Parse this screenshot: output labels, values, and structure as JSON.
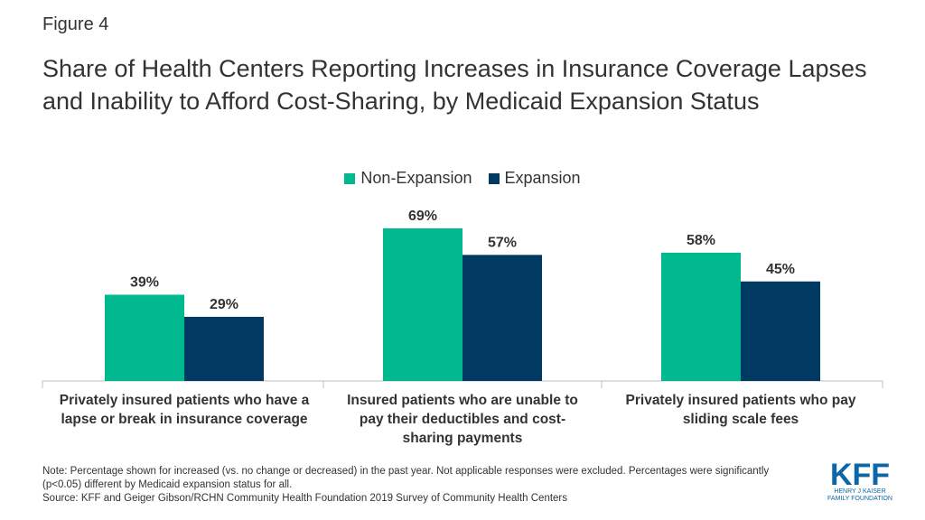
{
  "figure_label": "Figure 4",
  "colors": {
    "non_expansion": "#00B98E",
    "expansion": "#003A63",
    "logo": "#0B67A8"
  },
  "chart_data": {
    "type": "bar",
    "title": "Share of Health Centers Reporting Increases in Insurance Coverage Lapses and Inability to Afford Cost-Sharing, by Medicaid Expansion Status",
    "categories": [
      "Privately insured patients who have a lapse or break in insurance coverage",
      "Insured patients who are unable to pay their deductibles and cost-sharing payments",
      "Privately insured patients who pay sliding scale fees"
    ],
    "series": [
      {
        "name": "Non-Expansion",
        "values": [
          39,
          69,
          58
        ],
        "labels": [
          "39%",
          "69%",
          "58%"
        ]
      },
      {
        "name": "Expansion",
        "values": [
          29,
          57,
          45
        ],
        "labels": [
          "29%",
          "57%",
          "45%"
        ]
      }
    ],
    "ylim": [
      0,
      100
    ],
    "legend": "top-center",
    "grid": false
  },
  "category_label_lines": [
    [
      "Privately insured patients who have a",
      "lapse or break in insurance coverage"
    ],
    [
      "Insured patients who are unable to",
      "pay their deductibles and cost-",
      "sharing payments"
    ],
    [
      "Privately insured patients who pay",
      "sliding scale fees"
    ]
  ],
  "notes": {
    "note": "Note: Percentage shown for increased (vs. no change or decreased) in the past year. Not applicable responses were excluded. Percentages were significantly (p<0.05) different by Medicaid expansion status for all.",
    "source": "Source: KFF and Geiger Gibson/RCHN Community Health Foundation 2019 Survey of Community Health Centers"
  },
  "logo": {
    "wordmark": "KFF",
    "line1": "HENRY J KAISER",
    "line2": "FAMILY FOUNDATION"
  }
}
